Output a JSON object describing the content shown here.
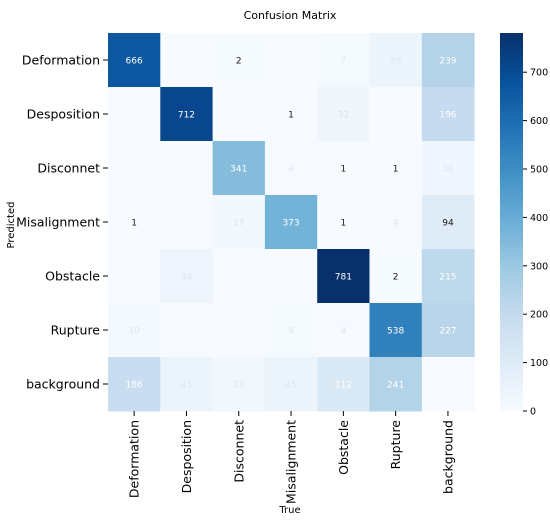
{
  "chart_data": {
    "type": "heatmap",
    "title": "Confusion Matrix",
    "xlabel": "True",
    "ylabel": "Predicted",
    "x_categories": [
      "Deformation",
      "Desposition",
      "Disconnet",
      "Misalignment",
      "Obstacle",
      "Rupture",
      "background"
    ],
    "y_categories": [
      "Deformation",
      "Desposition",
      "Disconnet",
      "Misalignment",
      "Obstacle",
      "Rupture",
      "background"
    ],
    "values": [
      [
        666,
        null,
        2,
        null,
        7,
        38,
        239
      ],
      [
        null,
        712,
        null,
        1,
        32,
        null,
        196
      ],
      [
        null,
        null,
        341,
        4,
        1,
        1,
        30
      ],
      [
        1,
        null,
        17,
        373,
        1,
        4,
        94
      ],
      [
        null,
        34,
        null,
        null,
        781,
        2,
        215
      ],
      [
        10,
        null,
        null,
        9,
        4,
        538,
        227
      ],
      [
        186,
        43,
        23,
        45,
        112,
        241,
        null
      ]
    ],
    "colorbar": {
      "min": 0,
      "max": 781,
      "ticks": [
        0,
        100,
        200,
        300,
        400,
        500,
        600,
        700
      ]
    },
    "colormap": [
      "#f7fbff",
      "#deebf7",
      "#c6dbef",
      "#9ecae1",
      "#6baed6",
      "#4292c6",
      "#2171b5",
      "#08519c",
      "#08306b"
    ]
  }
}
